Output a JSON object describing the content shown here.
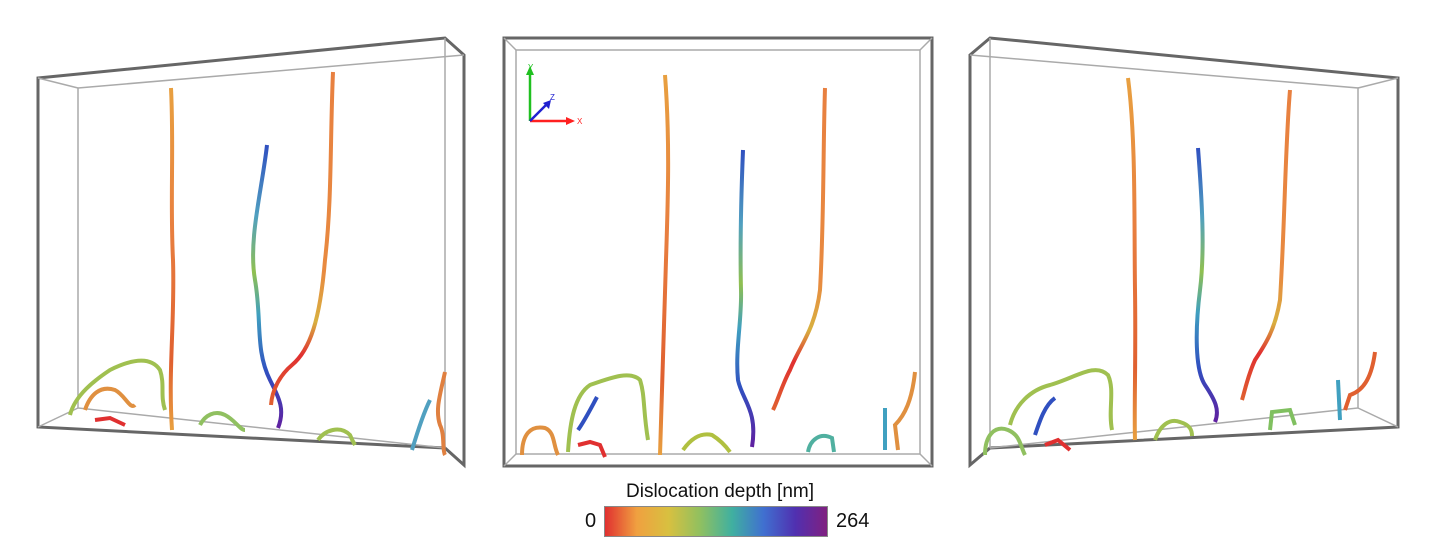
{
  "colorbar": {
    "title": "Dislocation depth [nm]",
    "min_label": "0",
    "max_label": "264",
    "min_value": 0,
    "max_value": 264,
    "colors": [
      "#e03030",
      "#f0a040",
      "#d8c040",
      "#90c060",
      "#40b0a0",
      "#4070d0",
      "#5030b0",
      "#802080"
    ]
  },
  "axes_triad": {
    "x_label": "X",
    "y_label": "Y",
    "z_label": "Z",
    "x_color": "#ff2020",
    "y_color": "#20c020",
    "z_color": "#2020d0"
  },
  "views": [
    "left-perspective",
    "front",
    "right-perspective"
  ],
  "box_color": "#666666"
}
